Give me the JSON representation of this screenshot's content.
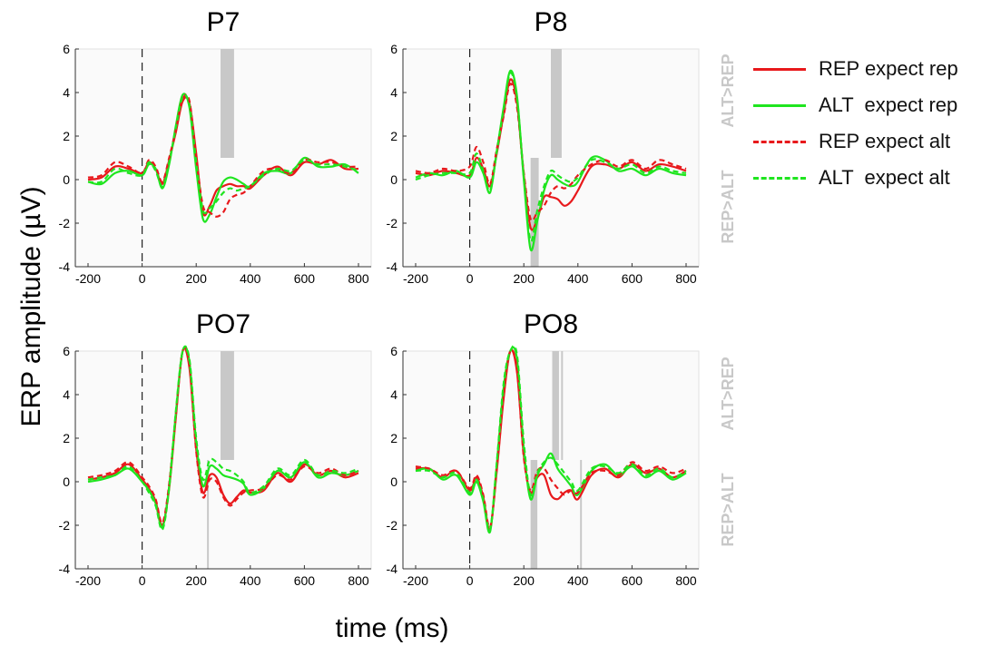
{
  "figure": {
    "ylabel": "ERP amplitude (µV)",
    "xlabel": "time (ms)",
    "side_label_top": "ALT>REP",
    "side_label_bottom": "REP>ALT"
  },
  "legend": [
    {
      "label": "REP expect rep",
      "color": "#e8191c",
      "dash": "solid"
    },
    {
      "label": "ALT  expect rep",
      "color": "#1fe51f",
      "dash": "solid"
    },
    {
      "label": "REP expect alt",
      "color": "#e8191c",
      "dash": "dashed"
    },
    {
      "label": "ALT  expect alt",
      "color": "#1fe51f",
      "dash": "dashed"
    }
  ],
  "chart_data": [
    {
      "type": "line",
      "title": "P7",
      "xlim": [
        -200,
        800
      ],
      "ylim": [
        -4,
        6
      ],
      "xticks": [
        -200,
        0,
        200,
        400,
        600,
        800
      ],
      "yticks": [
        -4,
        -2,
        0,
        2,
        4,
        6
      ],
      "x": [
        -200,
        -150,
        -100,
        -50,
        0,
        25,
        50,
        75,
        100,
        125,
        150,
        175,
        200,
        225,
        250,
        275,
        300,
        325,
        350,
        375,
        400,
        450,
        500,
        550,
        600,
        650,
        700,
        750,
        800
      ],
      "series": [
        {
          "name": "REP expect rep",
          "values": [
            0.0,
            0.1,
            0.6,
            0.5,
            0.3,
            0.8,
            0.5,
            -0.2,
            0.9,
            2.2,
            3.6,
            3.5,
            1.2,
            -1.5,
            -1.2,
            -0.5,
            -0.3,
            -0.2,
            -0.3,
            -0.3,
            -0.4,
            0.2,
            0.6,
            0.2,
            0.8,
            0.7,
            0.9,
            0.5,
            0.5
          ]
        },
        {
          "name": "ALT  expect rep",
          "values": [
            -0.1,
            -0.2,
            0.3,
            0.4,
            0.2,
            0.7,
            0.5,
            -0.4,
            0.7,
            2.5,
            3.9,
            3.3,
            0.5,
            -1.8,
            -1.6,
            -0.8,
            -0.1,
            0.1,
            0.0,
            -0.2,
            -0.3,
            0.3,
            0.4,
            0.3,
            1.0,
            0.6,
            0.6,
            0.7,
            0.3
          ]
        },
        {
          "name": "REP expect alt",
          "values": [
            0.1,
            0.2,
            0.8,
            0.6,
            0.3,
            0.9,
            0.6,
            -0.1,
            1.0,
            2.3,
            3.7,
            3.6,
            1.0,
            -1.2,
            -1.5,
            -1.7,
            -1.5,
            -0.9,
            -0.7,
            -0.6,
            -0.3,
            0.4,
            0.5,
            0.3,
            0.9,
            0.8,
            0.8,
            0.6,
            0.6
          ]
        },
        {
          "name": "ALT  expect alt",
          "values": [
            -0.1,
            -0.1,
            0.5,
            0.3,
            0.2,
            0.8,
            0.4,
            -0.3,
            0.8,
            2.4,
            3.8,
            3.4,
            0.8,
            -1.4,
            -1.3,
            -1.0,
            -0.6,
            -0.4,
            -0.5,
            -0.4,
            -0.3,
            0.2,
            0.5,
            0.4,
            0.9,
            0.7,
            0.7,
            0.6,
            0.4
          ]
        }
      ],
      "sig_alt_gt_rep": [
        [
          290,
          340
        ]
      ],
      "sig_rep_gt_alt": []
    },
    {
      "type": "line",
      "title": "P8",
      "xlim": [
        -200,
        800
      ],
      "ylim": [
        -4,
        6
      ],
      "xticks": [
        -200,
        0,
        200,
        400,
        600,
        800
      ],
      "yticks": [
        -4,
        -2,
        0,
        2,
        4,
        6
      ],
      "x": [
        -200,
        -150,
        -100,
        -50,
        0,
        25,
        50,
        75,
        100,
        125,
        150,
        175,
        200,
        225,
        250,
        275,
        300,
        325,
        350,
        375,
        400,
        450,
        500,
        550,
        600,
        650,
        700,
        750,
        800
      ],
      "series": [
        {
          "name": "REP expect rep",
          "values": [
            0.3,
            0.2,
            0.4,
            0.3,
            0.2,
            1.0,
            0.5,
            -0.3,
            1.2,
            3.0,
            4.6,
            3.5,
            0.2,
            -2.2,
            -1.8,
            -0.8,
            -0.8,
            -0.9,
            -1.2,
            -1.0,
            -0.5,
            0.6,
            0.7,
            0.5,
            0.8,
            0.4,
            0.7,
            0.6,
            0.4
          ]
        },
        {
          "name": "ALT  expect rep",
          "values": [
            0.1,
            0.3,
            0.2,
            0.4,
            0.1,
            0.8,
            0.3,
            -0.6,
            1.3,
            3.3,
            5.0,
            3.8,
            0.0,
            -3.2,
            -1.9,
            -0.5,
            0.2,
            0.0,
            -0.2,
            -0.3,
            -0.1,
            1.0,
            0.9,
            0.4,
            0.5,
            0.2,
            0.5,
            0.3,
            0.2
          ]
        },
        {
          "name": "REP expect alt",
          "values": [
            0.4,
            0.3,
            0.5,
            0.4,
            0.6,
            1.5,
            0.8,
            -0.2,
            1.4,
            2.9,
            4.4,
            3.3,
            0.3,
            -1.8,
            -1.5,
            -1.2,
            -0.6,
            -0.3,
            -0.4,
            -0.2,
            0.2,
            0.7,
            0.9,
            0.6,
            0.9,
            0.5,
            0.9,
            0.7,
            0.5
          ]
        },
        {
          "name": "ALT  expect alt",
          "values": [
            0.0,
            0.2,
            0.3,
            0.3,
            0.3,
            1.2,
            0.4,
            -0.5,
            1.3,
            3.2,
            4.9,
            3.7,
            0.1,
            -2.8,
            -1.4,
            -0.3,
            0.4,
            0.2,
            0.0,
            -0.1,
            0.1,
            0.9,
            0.8,
            0.5,
            0.7,
            0.3,
            0.6,
            0.4,
            0.3
          ]
        }
      ],
      "sig_alt_gt_rep": [
        [
          300,
          340
        ]
      ],
      "sig_rep_gt_alt": [
        [
          225,
          255
        ]
      ]
    },
    {
      "type": "line",
      "title": "PO7",
      "xlim": [
        -200,
        800
      ],
      "ylim": [
        -4,
        6
      ],
      "xticks": [
        -200,
        0,
        200,
        400,
        600,
        800
      ],
      "yticks": [
        -4,
        -2,
        0,
        2,
        4,
        6
      ],
      "x": [
        -200,
        -150,
        -100,
        -50,
        0,
        25,
        50,
        75,
        100,
        125,
        150,
        175,
        200,
        225,
        250,
        275,
        300,
        325,
        350,
        375,
        400,
        450,
        500,
        550,
        600,
        650,
        700,
        750,
        800
      ],
      "series": [
        {
          "name": "REP expect rep",
          "values": [
            0.1,
            0.2,
            0.4,
            0.8,
            0.1,
            -0.3,
            -0.9,
            -2.0,
            -0.3,
            3.0,
            6.0,
            5.2,
            1.5,
            -0.5,
            0.3,
            0.2,
            -0.6,
            -1.0,
            -0.7,
            -0.4,
            -0.5,
            -0.4,
            0.4,
            0.0,
            0.8,
            0.3,
            0.5,
            0.2,
            0.4
          ]
        },
        {
          "name": "ALT  expect rep",
          "values": [
            0.0,
            0.1,
            0.3,
            0.6,
            0.0,
            -0.4,
            -1.0,
            -2.1,
            -0.2,
            3.2,
            6.0,
            5.5,
            1.8,
            -0.2,
            0.7,
            0.6,
            0.3,
            0.2,
            0.1,
            -0.1,
            -0.6,
            -0.3,
            0.5,
            0.2,
            0.9,
            0.2,
            0.4,
            0.3,
            0.5
          ]
        },
        {
          "name": "REP expect alt",
          "values": [
            0.2,
            0.3,
            0.5,
            0.9,
            0.2,
            -0.2,
            -0.8,
            -1.9,
            -0.1,
            3.1,
            6.0,
            5.3,
            1.4,
            -0.7,
            0.1,
            0.0,
            -0.7,
            -1.1,
            -0.8,
            -0.5,
            -0.4,
            -0.3,
            0.3,
            0.1,
            0.7,
            0.4,
            0.6,
            0.3,
            0.5
          ]
        },
        {
          "name": "ALT  expect alt",
          "values": [
            0.1,
            0.2,
            0.3,
            0.7,
            0.0,
            -0.5,
            -1.1,
            -2.2,
            -0.3,
            3.3,
            6.0,
            5.6,
            2.0,
            0.1,
            1.0,
            0.9,
            0.6,
            0.5,
            0.3,
            0.0,
            -0.5,
            -0.2,
            0.6,
            0.3,
            1.0,
            0.3,
            0.5,
            0.4,
            0.6
          ]
        }
      ],
      "sig_alt_gt_rep": [
        [
          290,
          340
        ]
      ],
      "sig_rep_gt_alt": [
        [
          240,
          243
        ]
      ]
    },
    {
      "type": "line",
      "title": "PO8",
      "xlim": [
        -200,
        800
      ],
      "ylim": [
        -4,
        6
      ],
      "xticks": [
        -200,
        0,
        200,
        400,
        600,
        800
      ],
      "yticks": [
        -4,
        -2,
        0,
        2,
        4,
        6
      ],
      "x": [
        -200,
        -150,
        -100,
        -50,
        0,
        25,
        50,
        75,
        100,
        125,
        150,
        175,
        200,
        225,
        250,
        275,
        300,
        325,
        350,
        375,
        400,
        450,
        500,
        550,
        600,
        650,
        700,
        750,
        800
      ],
      "series": [
        {
          "name": "REP expect rep",
          "values": [
            0.6,
            0.6,
            0.2,
            0.5,
            -0.4,
            0.2,
            -0.7,
            -2.2,
            0.5,
            3.8,
            6.0,
            5.0,
            1.2,
            -0.5,
            0.2,
            0.3,
            -0.6,
            -0.8,
            -0.5,
            -0.4,
            -0.8,
            0.3,
            0.6,
            0.2,
            0.8,
            0.4,
            0.6,
            0.2,
            0.5
          ]
        },
        {
          "name": "ALT  expect rep",
          "values": [
            0.5,
            0.6,
            0.1,
            0.3,
            -0.6,
            0.0,
            -0.9,
            -2.3,
            0.8,
            4.3,
            6.0,
            5.6,
            1.5,
            -0.8,
            0.3,
            0.8,
            1.3,
            0.6,
            0.2,
            -0.2,
            -0.6,
            0.5,
            0.8,
            0.3,
            0.7,
            0.2,
            0.5,
            0.1,
            0.4
          ]
        },
        {
          "name": "REP expect alt",
          "values": [
            0.7,
            0.6,
            0.3,
            0.5,
            -0.3,
            0.3,
            -0.6,
            -2.1,
            0.6,
            3.9,
            6.0,
            5.1,
            1.1,
            -0.4,
            0.5,
            0.6,
            0.1,
            -0.3,
            -0.6,
            -0.4,
            -0.5,
            0.4,
            0.5,
            0.3,
            0.9,
            0.5,
            0.7,
            0.4,
            0.6
          ]
        },
        {
          "name": "ALT  expect alt",
          "values": [
            0.5,
            0.5,
            0.2,
            0.4,
            -0.5,
            0.1,
            -0.8,
            -2.2,
            0.9,
            4.5,
            6.0,
            5.8,
            1.8,
            -0.6,
            0.4,
            0.9,
            1.1,
            0.8,
            0.4,
            0.0,
            -0.4,
            0.6,
            0.7,
            0.4,
            0.8,
            0.3,
            0.6,
            0.2,
            0.5
          ]
        }
      ],
      "sig_alt_gt_rep": [
        [
          305,
          330
        ],
        [
          338,
          341
        ]
      ],
      "sig_rep_gt_alt": [
        [
          225,
          250
        ],
        [
          408,
          411
        ]
      ]
    }
  ]
}
